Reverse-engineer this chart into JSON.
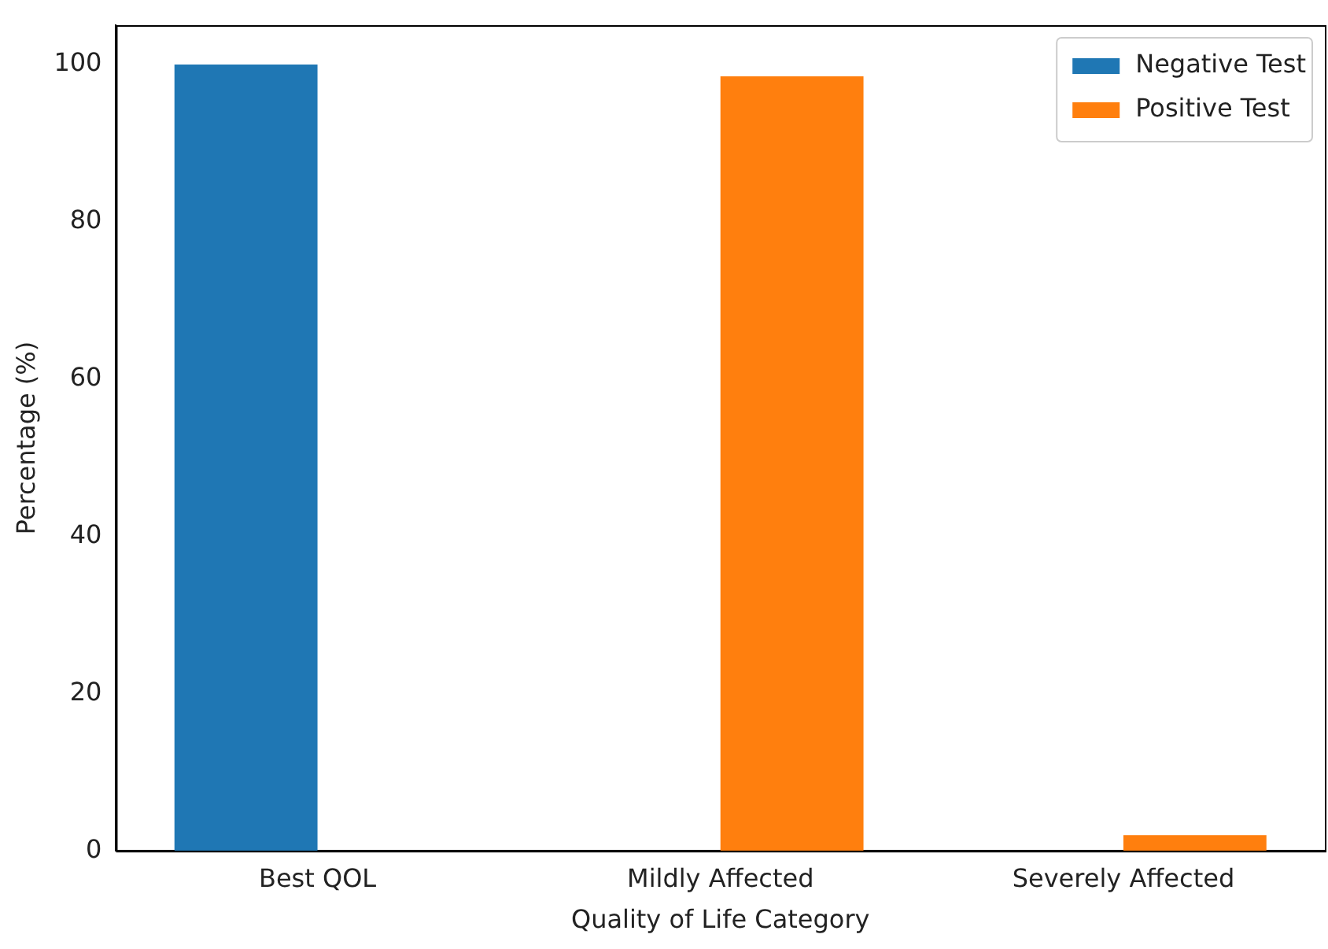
{
  "chart_data": {
    "type": "bar",
    "xlabel": "Quality of Life Category",
    "ylabel": "Percentage (%)",
    "categories": [
      "Best QOL",
      "Mildly Affected",
      "Severely Affected"
    ],
    "series": [
      {
        "name": "Negative Test",
        "color": "#1f77b4",
        "values": [
          100,
          0,
          0
        ]
      },
      {
        "name": "Positive Test",
        "color": "#ff7f0e",
        "values": [
          0,
          98.5,
          2
        ]
      }
    ],
    "ylim": [
      0,
      105
    ],
    "yticks": [
      0,
      20,
      40,
      60,
      80,
      100
    ],
    "grid": false,
    "legend": "top right"
  }
}
